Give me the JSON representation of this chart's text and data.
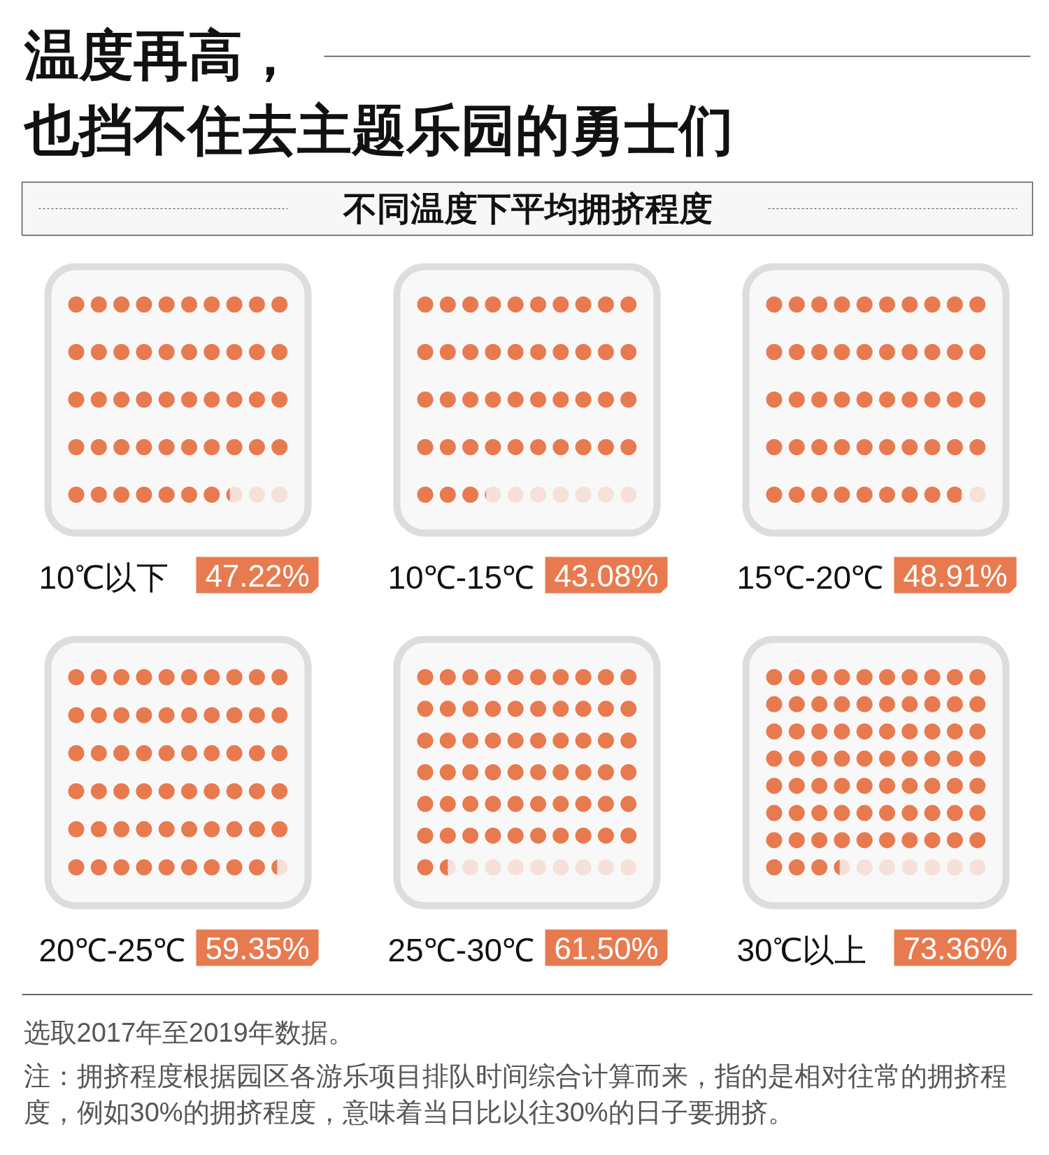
{
  "chart_data": {
    "type": "other",
    "title": "温度再高，也挡不住去主题乐园的勇士们",
    "subtitle": "不同温度下平均拥挤程度",
    "categories": [
      "10℃以下",
      "10℃-15℃",
      "15℃-20℃",
      "20℃-25℃",
      "25℃-30℃",
      "30℃以上"
    ],
    "values": [
      47.22,
      43.08,
      48.91,
      59.35,
      61.5,
      73.36
    ],
    "value_labels": [
      "47.22%",
      "43.08%",
      "48.91%",
      "59.35%",
      "61.50%",
      "73.36%"
    ],
    "color": "#e87a4f",
    "annotations": [
      "选取2017年至2019年数据。",
      "注：拥挤程度根据园区各游乐项目排队时间综合计算而来，指的是相对往常的拥挤程度，例如30%的拥挤程度，意味着当日比以往30%的日子要拥挤。"
    ]
  }
}
